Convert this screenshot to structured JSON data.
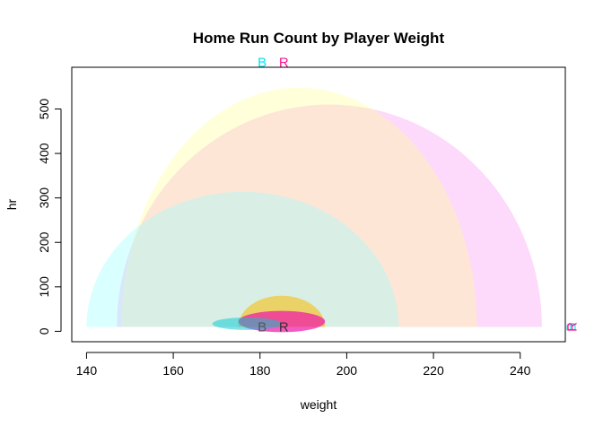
{
  "chart_data": {
    "type": "scatter",
    "title": "Home Run Count by Player Weight",
    "xlabel": "weight",
    "ylabel": "hr",
    "xlim": [
      136.6,
      250.4
    ],
    "ylim": [
      -23.4,
      593.8
    ],
    "x_ticks": [
      140,
      160,
      180,
      200,
      220,
      240
    ],
    "y_ticks": [
      0,
      100,
      200,
      300,
      400,
      500
    ],
    "grid": false,
    "legend": "none",
    "series": [
      {
        "name": "B",
        "color": "#00e5ee",
        "ellipses": [
          {
            "cx": 176,
            "cy": 10,
            "rx": 36,
            "ry": 304,
            "half": "upper",
            "fill": "rgba(150,255,255,0.35)"
          },
          {
            "cx": 177,
            "cy": 17,
            "rx": 8,
            "ry": 14,
            "half": "full",
            "fill": "rgba(0,200,210,0.5)"
          }
        ],
        "labels": [
          {
            "text": "B",
            "x": 180.5,
            "y": 605,
            "color": "#00e5ee"
          },
          {
            "text": "B",
            "x": 180.5,
            "y": 10,
            "color": "#555555"
          }
        ]
      },
      {
        "name": "R",
        "color": "#ff1493",
        "ellipses": [
          {
            "cx": 189,
            "cy": 10,
            "rx": 41,
            "ry": 538,
            "half": "upper",
            "fill": "rgba(255,255,150,0.35)"
          },
          {
            "cx": 196,
            "cy": 10,
            "rx": 49,
            "ry": 500,
            "half": "upper",
            "fill": "rgba(250,160,245,0.4)"
          },
          {
            "cx": 185,
            "cy": 10,
            "rx": 10,
            "ry": 70,
            "half": "upper",
            "fill": "rgba(240,200,60,0.75)"
          },
          {
            "cx": 185,
            "cy": 22,
            "rx": 10,
            "ry": 24,
            "half": "full",
            "fill": "rgba(240,20,170,0.7)"
          }
        ],
        "labels": [
          {
            "text": "R",
            "x": 185.5,
            "y": 605,
            "color": "#ff1493"
          },
          {
            "text": "R",
            "x": 185.5,
            "y": 10,
            "color": "#333333"
          }
        ]
      }
    ],
    "edge_labels": [
      {
        "text": "B",
        "x": 250.3,
        "y": 10,
        "color": "#00e5ee"
      },
      {
        "text": "R",
        "x": 250.5,
        "y": 10,
        "color": "#ff1493"
      }
    ]
  }
}
